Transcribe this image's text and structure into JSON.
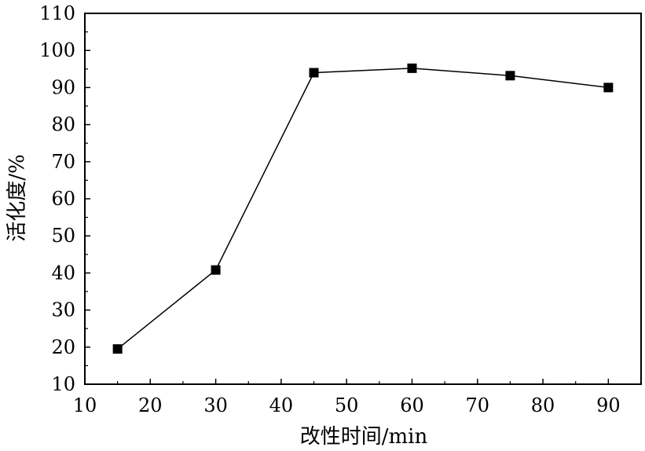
{
  "chart_data": {
    "type": "line",
    "title": "",
    "xlabel": "改性时间/min",
    "ylabel": "活化度/%",
    "xlim": [
      10,
      95
    ],
    "ylim": [
      10,
      110
    ],
    "x_ticks": [
      10,
      20,
      30,
      40,
      50,
      60,
      70,
      80,
      90
    ],
    "y_ticks": [
      10,
      20,
      30,
      40,
      50,
      60,
      70,
      80,
      90,
      100,
      110
    ],
    "grid": false,
    "marker": "square",
    "line_color": "#000000",
    "series": [
      {
        "x": [
          15,
          30,
          45,
          60,
          75,
          90
        ],
        "y": [
          19.5,
          40.8,
          94.0,
          95.2,
          93.2,
          90.0
        ]
      }
    ]
  }
}
